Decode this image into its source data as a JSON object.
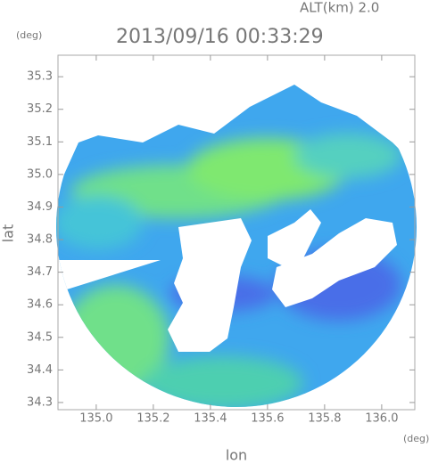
{
  "chart_data": {
    "type": "radar-map",
    "subtitle": "ALT(km) 2.0",
    "title": "2013/09/16 00:33:29",
    "xlabel": "lon",
    "ylabel": "lat",
    "xunit": "(deg)",
    "yunit": "(deg)",
    "xlim": [
      134.866,
      136.116
    ],
    "ylim": [
      34.278,
      35.366
    ],
    "xticks": [
      {
        "value": 135.0,
        "label": "135.0"
      },
      135.2,
      135.4,
      135.6,
      135.8,
      {
        "value": 136.0,
        "label": "136.0"
      }
    ],
    "yticks": [
      34.3,
      34.4,
      34.5,
      34.6,
      34.7,
      34.8,
      34.9,
      {
        "value": 35.0,
        "label": "35.0"
      },
      35.1,
      35.2,
      35.3
    ]
  }
}
